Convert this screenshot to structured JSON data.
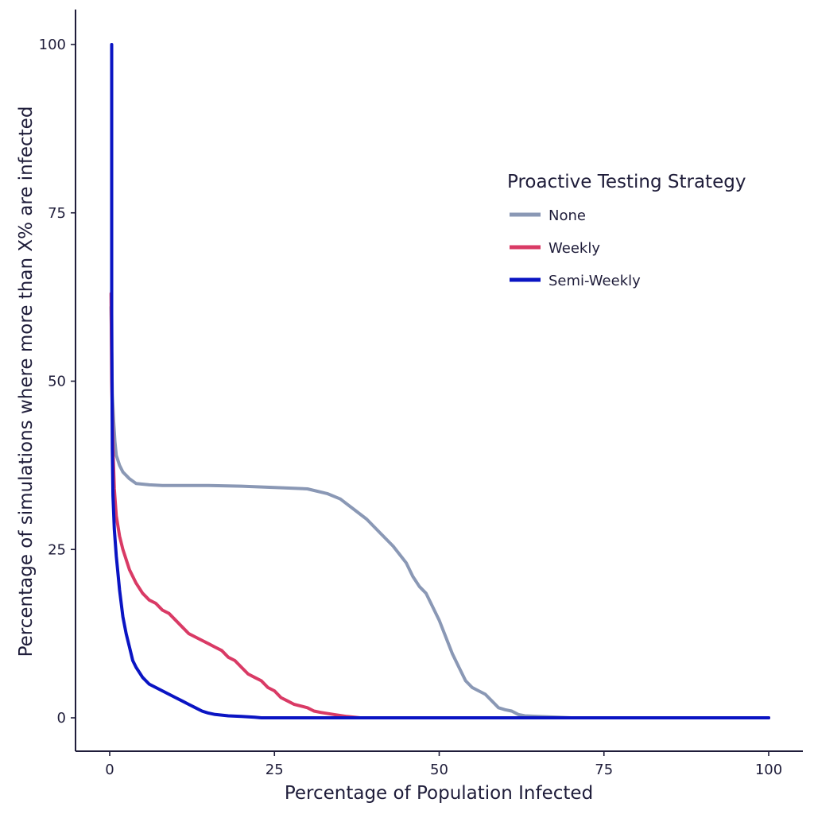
{
  "chart_data": {
    "type": "line",
    "title": "",
    "xlabel": "Percentage of Population Infected",
    "ylabel": "Percentage of simulations where more than X% are infected",
    "xlim": [
      0,
      100
    ],
    "ylim": [
      0,
      100
    ],
    "x_ticks": [
      0,
      25,
      50,
      75,
      100
    ],
    "y_ticks": [
      0,
      25,
      50,
      75,
      100
    ],
    "grid": false,
    "legend": {
      "title": "Proactive Testing Strategy",
      "position": "top-right"
    },
    "series": [
      {
        "name": "None",
        "color": "#8a98b5",
        "x": [
          0.2,
          0.4,
          0.6,
          0.8,
          1,
          1.5,
          2,
          3,
          4,
          6,
          8,
          10,
          15,
          20,
          25,
          30,
          33,
          35,
          37,
          39,
          41,
          43,
          45,
          46,
          47,
          48,
          49,
          50,
          51,
          52,
          53,
          54,
          55,
          56,
          57,
          58,
          59,
          60,
          61,
          62,
          63,
          65,
          68,
          70,
          75,
          100
        ],
        "values": [
          61,
          48,
          44,
          41,
          39,
          37.5,
          36.5,
          35.5,
          34.8,
          34.6,
          34.5,
          34.5,
          34.5,
          34.4,
          34.2,
          34,
          33.3,
          32.5,
          31,
          29.5,
          27.5,
          25.5,
          23,
          21,
          19.5,
          18.5,
          16.5,
          14.5,
          12,
          9.5,
          7.5,
          5.5,
          4.5,
          4,
          3.5,
          2.5,
          1.5,
          1.2,
          1,
          0.5,
          0.3,
          0.2,
          0.1,
          0,
          0,
          0
        ]
      },
      {
        "name": "Weekly",
        "color": "#d93a65",
        "x": [
          0.2,
          0.3,
          0.5,
          0.7,
          1,
          1.5,
          2,
          3,
          4,
          5,
          6,
          7,
          8,
          9,
          10,
          11,
          12,
          13,
          14,
          15,
          16,
          17,
          18,
          19,
          20,
          21,
          22,
          23,
          24,
          25,
          26,
          27,
          28,
          30,
          31,
          32,
          34,
          36,
          38,
          40,
          100
        ],
        "values": [
          63,
          50,
          40,
          34,
          30,
          27,
          25,
          22,
          20,
          18.5,
          17.5,
          17,
          16,
          15.5,
          14.5,
          13.5,
          12.5,
          12,
          11.5,
          11,
          10.5,
          10,
          9,
          8.5,
          7.5,
          6.5,
          6,
          5.5,
          4.5,
          4,
          3,
          2.5,
          2,
          1.5,
          1,
          0.8,
          0.5,
          0.2,
          0,
          0,
          0
        ]
      },
      {
        "name": "Semi-Weekly",
        "color": "#0a14c3",
        "x": [
          0.3,
          0.3,
          0.35,
          0.4,
          0.5,
          0.7,
          1,
          1.5,
          2,
          2.5,
          3,
          3.5,
          4,
          5,
          6,
          7,
          8,
          9,
          10,
          11,
          12,
          13,
          14,
          15,
          16,
          18,
          20,
          22,
          23,
          25,
          100
        ],
        "values": [
          100,
          60,
          50,
          40,
          33,
          28,
          24,
          19,
          15,
          12.5,
          10.5,
          8.5,
          7.5,
          6,
          5,
          4.5,
          4,
          3.5,
          3,
          2.5,
          2,
          1.5,
          1,
          0.7,
          0.5,
          0.3,
          0.2,
          0.1,
          0,
          0,
          0
        ]
      }
    ]
  }
}
